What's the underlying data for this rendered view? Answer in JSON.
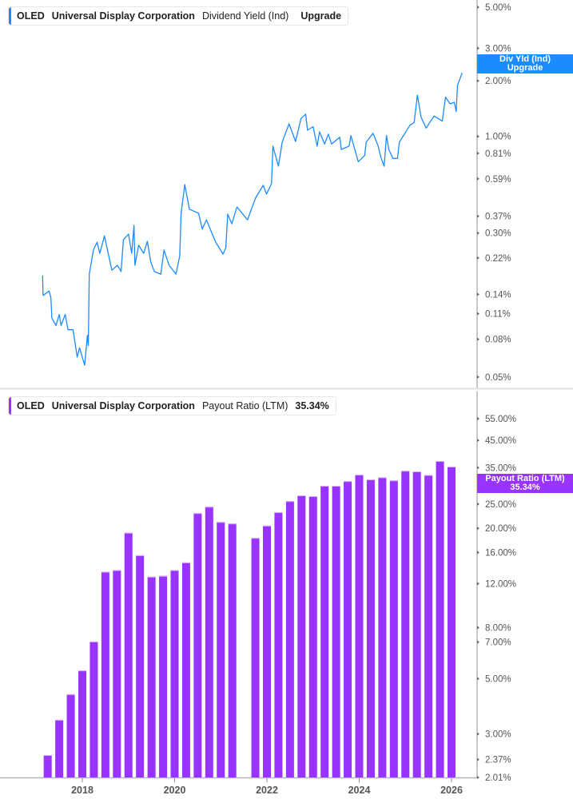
{
  "panels": [
    {
      "ticker": "OLED",
      "company": "Universal Display Corporation",
      "metric": "Dividend Yield (Ind)",
      "value": "Upgrade",
      "badge_line1": "Div Yld (Ind)",
      "badge_line2": "Upgrade",
      "color": "#1a8cff"
    },
    {
      "ticker": "OLED",
      "company": "Universal Display Corporation",
      "metric": "Payout Ratio (LTM)",
      "value": "35.34%",
      "badge_line1": "Payout Ratio (LTM)",
      "badge_line2": "35.34%",
      "color": "#9933ff"
    }
  ],
  "chart_data": [
    {
      "type": "line",
      "title": "OLED Universal Display Corporation Dividend Yield (Ind)",
      "yscale": "log",
      "ylim": [
        0.045,
        5.5
      ],
      "yticks": [
        5.0,
        3.0,
        2.0,
        1.0,
        0.81,
        0.59,
        0.37,
        0.3,
        0.22,
        0.14,
        0.11,
        0.08,
        0.05
      ],
      "ytick_labels": [
        "5.00%",
        "3.00%",
        "2.00%",
        "1.00%",
        "0.81%",
        "0.59%",
        "0.37%",
        "0.30%",
        "0.22%",
        "0.14%",
        "0.11%",
        "0.08%",
        "0.05%"
      ],
      "grid": false,
      "series": [
        {
          "color": "#1a8cff",
          "x": [
            2017.14,
            2017.15,
            2017.28,
            2017.32,
            2017.34,
            2017.43,
            2017.5,
            2017.54,
            2017.63,
            2017.69,
            2017.8,
            2017.89,
            2017.94,
            2018.05,
            2018.11,
            2018.13,
            2018.15,
            2018.24,
            2018.32,
            2018.38,
            2018.48,
            2018.64,
            2018.76,
            2018.84,
            2018.89,
            2019.0,
            2019.07,
            2019.12,
            2019.14,
            2019.22,
            2019.33,
            2019.41,
            2019.48,
            2019.56,
            2019.7,
            2019.77,
            2019.88,
            2020.03,
            2020.11,
            2020.14,
            2020.22,
            2020.32,
            2020.52,
            2020.6,
            2020.69,
            2020.89,
            2021.05,
            2021.11,
            2021.15,
            2021.24,
            2021.35,
            2021.58,
            2021.76,
            2021.92,
            2021.99,
            2022.1,
            2022.13,
            2022.25,
            2022.33,
            2022.48,
            2022.62,
            2022.74,
            2022.84,
            2022.88,
            2023.0,
            2023.09,
            2023.14,
            2023.25,
            2023.33,
            2023.4,
            2023.58,
            2023.61,
            2023.78,
            2023.82,
            2023.98,
            2024.12,
            2024.15,
            2024.3,
            2024.41,
            2024.47,
            2024.54,
            2024.59,
            2024.64,
            2024.73,
            2024.83,
            2024.87,
            2025.1,
            2025.19,
            2025.26,
            2025.34,
            2025.45,
            2025.62,
            2025.8,
            2025.87,
            2025.97,
            2026.06,
            2026.1,
            2026.13,
            2026.23
          ],
          "y": [
            0.177,
            0.138,
            0.146,
            0.134,
            0.104,
            0.095,
            0.109,
            0.095,
            0.109,
            0.09,
            0.09,
            0.064,
            0.072,
            0.058,
            0.084,
            0.074,
            0.18,
            0.243,
            0.268,
            0.233,
            0.29,
            0.189,
            0.201,
            0.186,
            0.276,
            0.296,
            0.233,
            0.331,
            0.201,
            0.258,
            0.233,
            0.271,
            0.211,
            0.186,
            0.18,
            0.243,
            0.201,
            0.18,
            0.226,
            0.384,
            0.549,
            0.404,
            0.384,
            0.315,
            0.354,
            0.268,
            0.231,
            0.25,
            0.38,
            0.337,
            0.415,
            0.354,
            0.468,
            0.544,
            0.488,
            0.555,
            0.886,
            0.69,
            0.93,
            1.17,
            0.94,
            1.25,
            1.32,
            1.08,
            1.13,
            0.886,
            1.06,
            0.91,
            1.03,
            0.91,
            0.99,
            0.85,
            0.886,
            1.01,
            0.73,
            0.79,
            0.93,
            1.04,
            0.886,
            0.77,
            0.69,
            1.01,
            0.85,
            0.76,
            0.76,
            0.93,
            1.15,
            1.19,
            1.67,
            1.27,
            1.11,
            1.29,
            1.21,
            1.63,
            1.5,
            1.53,
            1.36,
            1.89,
            2.21
          ]
        }
      ]
    },
    {
      "type": "bar",
      "title": "OLED Universal Display Corporation Payout Ratio (LTM)",
      "yscale": "log",
      "ylim": [
        2.01,
        60
      ],
      "yticks": [
        55,
        45,
        35,
        25,
        20,
        16,
        12,
        8,
        7,
        5,
        3,
        2.37,
        2.01
      ],
      "ytick_labels": [
        "55.00%",
        "45.00%",
        "35.00%",
        "25.00%",
        "20.00%",
        "16.00%",
        "12.00%",
        "8.00%",
        "7.00%",
        "5.00%",
        "3.00%",
        "2.37%",
        "2.01%"
      ],
      "xticks": [
        2018,
        2020,
        2022,
        2024,
        2026
      ],
      "xtick_labels": [
        "2018",
        "2020",
        "2022",
        "2024",
        "2026"
      ],
      "xlim": [
        2016.4,
        2026.9
      ],
      "grid": false,
      "categories": [
        "2017-Q1",
        "2017-Q2",
        "2017-Q3",
        "2017-Q4",
        "2018-Q1",
        "2018-Q2",
        "2018-Q3",
        "2018-Q4",
        "2019-Q1",
        "2019-Q2",
        "2019-Q3",
        "2019-Q4",
        "2020-Q1",
        "2020-Q2",
        "2020-Q3",
        "2020-Q4",
        "2021-Q1",
        "2021-Q3",
        "2021-Q4",
        "2022-Q1",
        "2022-Q2",
        "2022-Q3",
        "2022-Q4",
        "2023-Q1",
        "2023-Q2",
        "2023-Q3",
        "2023-Q4",
        "2024-Q1",
        "2024-Q2",
        "2024-Q3",
        "2024-Q4",
        "2025-Q1",
        "2025-Q2",
        "2025-Q3",
        "2025-Q4"
      ],
      "x": [
        2017.25,
        2017.5,
        2017.75,
        2018.0,
        2018.25,
        2018.5,
        2018.75,
        2019.0,
        2019.25,
        2019.5,
        2019.75,
        2020.0,
        2020.25,
        2020.5,
        2020.75,
        2021.0,
        2021.25,
        2021.75,
        2022.0,
        2022.25,
        2022.5,
        2022.75,
        2023.0,
        2023.25,
        2023.5,
        2023.75,
        2024.0,
        2024.25,
        2024.5,
        2024.75,
        2025.0,
        2025.25,
        2025.5,
        2025.75,
        2026.0
      ],
      "values": [
        2.47,
        3.42,
        4.33,
        5.39,
        7.04,
        13.4,
        13.6,
        19.2,
        15.6,
        12.8,
        12.9,
        13.6,
        14.6,
        23.0,
        24.4,
        21.2,
        20.9,
        18.3,
        20.5,
        23.2,
        25.7,
        27.1,
        26.9,
        29.6,
        29.6,
        30.9,
        32.8,
        31.4,
        32.0,
        31.1,
        34.0,
        33.8,
        32.7,
        37.2,
        35.34
      ],
      "color": "#9933ff"
    }
  ]
}
